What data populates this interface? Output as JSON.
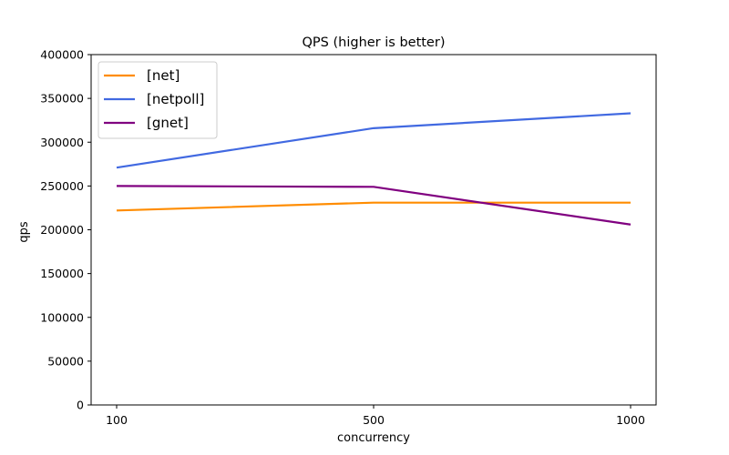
{
  "chart_data": {
    "type": "line",
    "title": "QPS (higher is better)",
    "xlabel": "concurrency",
    "ylabel": "qps",
    "categories": [
      "100",
      "500",
      "1000"
    ],
    "ylim": [
      0,
      400000
    ],
    "yticks": [
      "0",
      "50000",
      "100000",
      "150000",
      "200000",
      "250000",
      "300000",
      "350000",
      "400000"
    ],
    "grid": false,
    "legend_position": "top-left",
    "series": [
      {
        "name": "[net]",
        "color": "#ff8c00",
        "values": [
          222000,
          231000,
          231000
        ]
      },
      {
        "name": "[netpoll]",
        "color": "#4169e1",
        "values": [
          271000,
          316000,
          333000
        ]
      },
      {
        "name": "[gnet]",
        "color": "#800080",
        "values": [
          250000,
          249000,
          206000
        ]
      }
    ]
  }
}
